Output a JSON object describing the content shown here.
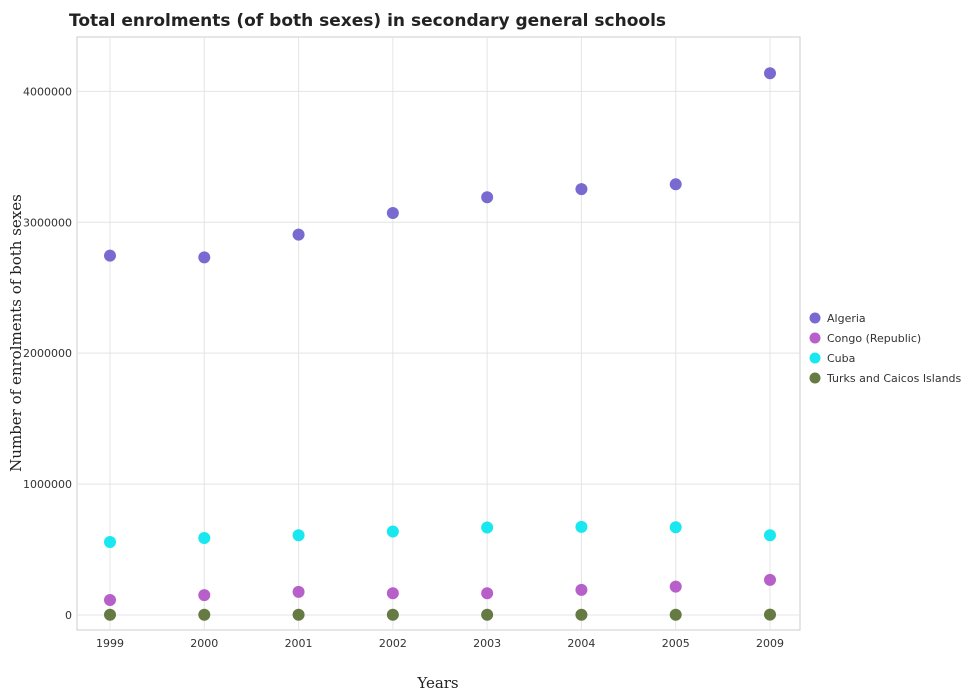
{
  "chart_data": {
    "type": "scatter",
    "title": "Total enrolments (of both sexes) in secondary general schools",
    "xlabel": "Years",
    "ylabel": "Number of enrolments of both sexes",
    "categories": [
      "1999",
      "2000",
      "2001",
      "2002",
      "2003",
      "2004",
      "2005",
      "2009"
    ],
    "ylim": [
      0,
      4400000
    ],
    "yticks": [
      0,
      1000000,
      2000000,
      3000000,
      4000000
    ],
    "ytick_labels": [
      "0",
      "1000000",
      "2000000",
      "3000000",
      "4000000"
    ],
    "grid": true,
    "legend_position": "right",
    "series": [
      {
        "name": "Algeria",
        "color": "#6a5acd",
        "values": [
          2745000,
          2732000,
          2906000,
          3071000,
          3191000,
          3253000,
          3290000,
          4138000
        ]
      },
      {
        "name": "Congo (Republic)",
        "color": "#b04fc4",
        "values": [
          115000,
          152000,
          177000,
          166000,
          166000,
          192000,
          217000,
          268000
        ]
      },
      {
        "name": "Cuba",
        "color": "#00e5ee",
        "values": [
          558000,
          588000,
          609000,
          638000,
          668000,
          673000,
          670000,
          609000
        ]
      },
      {
        "name": "Turks and Caicos Islands",
        "color": "#556b2f",
        "values": [
          1500,
          1700,
          1800,
          1900,
          2000,
          2100,
          2300,
          2800
        ]
      }
    ]
  }
}
